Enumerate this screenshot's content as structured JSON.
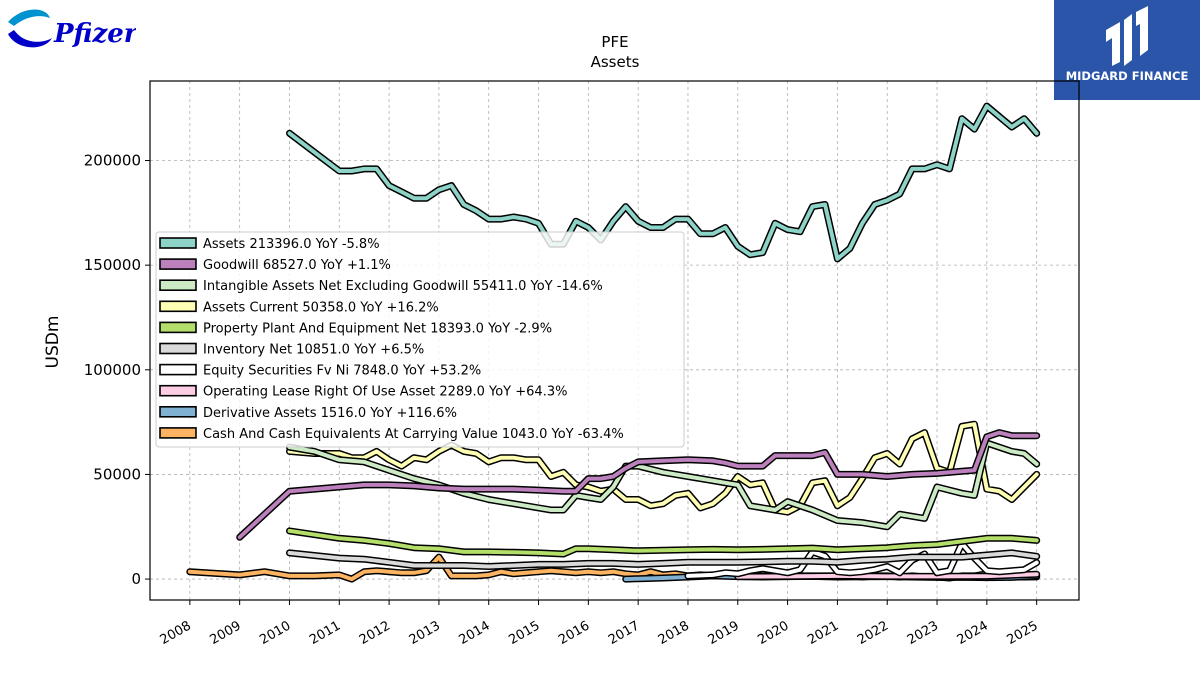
{
  "brand": {
    "company_logo_text": "Pfizer",
    "partner_logo_text": "MIDGARD FINANCE"
  },
  "chart_data": {
    "type": "line",
    "title": "PFE",
    "subtitle": "Assets",
    "ylabel": "USDm",
    "xlabel": "",
    "ylim": [
      -10000,
      238000
    ],
    "xlim": [
      2007.2,
      2025.85
    ],
    "yticks": [
      0,
      50000,
      100000,
      150000,
      200000
    ],
    "xticks": [
      2008,
      2009,
      2010,
      2011,
      2012,
      2013,
      2014,
      2015,
      2016,
      2017,
      2018,
      2019,
      2020,
      2021,
      2022,
      2023,
      2024,
      2025
    ],
    "grid": true,
    "legend_position": "center-left",
    "series": [
      {
        "name": "Assets",
        "legend": "Assets  213396.0 YoY -5.8%",
        "color": "#8dd3c7",
        "x": [
          2010.0,
          2010.5,
          2011.0,
          2011.25,
          2011.5,
          2011.75,
          2012.0,
          2012.25,
          2012.5,
          2012.75,
          2013.0,
          2013.25,
          2013.5,
          2013.75,
          2014.0,
          2014.25,
          2014.5,
          2014.75,
          2015.0,
          2015.25,
          2015.5,
          2015.75,
          2016.0,
          2016.25,
          2016.5,
          2016.75,
          2017.0,
          2017.25,
          2017.5,
          2017.75,
          2018.0,
          2018.25,
          2018.5,
          2018.75,
          2019.0,
          2019.25,
          2019.5,
          2019.75,
          2020.0,
          2020.25,
          2020.5,
          2020.75,
          2021.0,
          2021.25,
          2021.5,
          2021.75,
          2022.0,
          2022.25,
          2022.5,
          2022.75,
          2023.0,
          2023.25,
          2023.5,
          2023.75,
          2024.0,
          2024.25,
          2024.5,
          2024.75,
          2025.0
        ],
        "values": [
          213000,
          204000,
          195000,
          195000,
          196000,
          196000,
          188000,
          185000,
          182000,
          182000,
          186000,
          188000,
          179000,
          176000,
          172000,
          172000,
          173000,
          172000,
          170000,
          160000,
          160000,
          171000,
          168000,
          162000,
          171000,
          178000,
          171000,
          168000,
          168000,
          172000,
          172000,
          165000,
          165000,
          168000,
          159000,
          155000,
          156000,
          170000,
          167000,
          166000,
          178000,
          179000,
          153000,
          158000,
          170000,
          179000,
          181000,
          184000,
          196000,
          196000,
          198000,
          196000,
          220000,
          215000,
          226000,
          221000,
          216000,
          220000,
          213000
        ]
      },
      {
        "name": "Goodwill",
        "legend": "Goodwill  68527.0 YoY +1.1%",
        "color": "#bc80bd",
        "x": [
          2009.0,
          2010.0,
          2011.0,
          2011.5,
          2012.0,
          2012.5,
          2013.0,
          2013.5,
          2014.0,
          2014.5,
          2015.0,
          2015.5,
          2015.75,
          2016.0,
          2016.25,
          2016.5,
          2016.75,
          2017.0,
          2017.5,
          2018.0,
          2018.5,
          2018.75,
          2019.0,
          2019.25,
          2019.5,
          2019.75,
          2020.0,
          2020.5,
          2020.75,
          2021.0,
          2021.5,
          2022.0,
          2022.5,
          2023.0,
          2023.5,
          2023.75,
          2024.0,
          2024.25,
          2024.5,
          2025.0
        ],
        "values": [
          20000,
          42000,
          44000,
          45000,
          45000,
          44500,
          43500,
          43000,
          43000,
          43000,
          42500,
          42000,
          42000,
          48000,
          48000,
          49000,
          53000,
          56000,
          56500,
          57000,
          56500,
          55500,
          54000,
          54000,
          54000,
          59000,
          59000,
          59000,
          60500,
          50000,
          50000,
          49000,
          50000,
          50500,
          51500,
          52000,
          68000,
          70000,
          68500,
          68500
        ]
      },
      {
        "name": "Intangible Assets Net Excluding Goodwill",
        "legend": "Intangible Assets Net Excluding Goodwill  55411.0 YoY -14.6%",
        "color": "#ccebc5",
        "x": [
          2010.0,
          2010.5,
          2011.0,
          2011.5,
          2012.0,
          2012.5,
          2013.0,
          2013.5,
          2014.0,
          2014.5,
          2015.0,
          2015.25,
          2015.5,
          2015.75,
          2016.0,
          2016.25,
          2016.5,
          2016.75,
          2017.0,
          2017.5,
          2018.0,
          2018.5,
          2018.75,
          2019.0,
          2019.25,
          2019.5,
          2019.75,
          2020.0,
          2020.5,
          2021.0,
          2021.5,
          2021.75,
          2022.0,
          2022.25,
          2022.5,
          2022.75,
          2023.0,
          2023.5,
          2023.75,
          2024.0,
          2024.5,
          2024.75,
          2025.0
        ],
        "values": [
          63000,
          61000,
          57000,
          56000,
          52000,
          48000,
          45000,
          41000,
          38000,
          36000,
          34000,
          33000,
          33000,
          40000,
          39000,
          38000,
          44000,
          54000,
          54000,
          51000,
          49000,
          47000,
          46000,
          45000,
          35000,
          34000,
          33000,
          37000,
          33000,
          28000,
          27000,
          26000,
          25000,
          31000,
          30000,
          29000,
          44000,
          41000,
          40000,
          65000,
          61000,
          60000,
          55000
        ]
      },
      {
        "name": "Assets Current",
        "legend": "Assets Current  50358.0 YoY +16.2%",
        "color": "#ffffb3",
        "x": [
          2010.0,
          2010.5,
          2011.0,
          2011.25,
          2011.5,
          2011.75,
          2012.0,
          2012.25,
          2012.5,
          2012.75,
          2013.0,
          2013.25,
          2013.5,
          2013.75,
          2014.0,
          2014.25,
          2014.5,
          2014.75,
          2015.0,
          2015.25,
          2015.5,
          2015.75,
          2016.0,
          2016.25,
          2016.5,
          2016.75,
          2017.0,
          2017.25,
          2017.5,
          2017.75,
          2018.0,
          2018.25,
          2018.5,
          2018.75,
          2019.0,
          2019.25,
          2019.5,
          2019.75,
          2020.0,
          2020.25,
          2020.5,
          2020.75,
          2021.0,
          2021.25,
          2021.5,
          2021.75,
          2022.0,
          2022.25,
          2022.5,
          2022.75,
          2023.0,
          2023.25,
          2023.5,
          2023.75,
          2024.0,
          2024.25,
          2024.5,
          2024.75,
          2025.0
        ],
        "values": [
          61000,
          60000,
          60000,
          58000,
          58000,
          61000,
          57000,
          54000,
          58000,
          57000,
          61000,
          64000,
          61000,
          60000,
          56000,
          58000,
          58000,
          57000,
          57000,
          49000,
          51000,
          45000,
          44000,
          42000,
          43000,
          38000,
          38000,
          35000,
          36000,
          40000,
          41000,
          34000,
          36000,
          41000,
          49000,
          45000,
          46000,
          33000,
          32000,
          35000,
          46000,
          47000,
          35000,
          39000,
          48000,
          58000,
          60000,
          55000,
          67000,
          70000,
          53000,
          51000,
          73000,
          74000,
          43000,
          42000,
          38000,
          44000,
          50000
        ]
      },
      {
        "name": "Property Plant And Equipment Net",
        "legend": "Property Plant And Equipment Net  18393.0 YoY -2.9%",
        "color": "#b3de69",
        "x": [
          2010.0,
          2011.0,
          2011.5,
          2012.0,
          2012.5,
          2013.0,
          2013.5,
          2014.0,
          2014.5,
          2015.0,
          2015.5,
          2015.75,
          2016.0,
          2016.5,
          2017.0,
          2017.5,
          2018.0,
          2018.5,
          2019.0,
          2019.5,
          2020.0,
          2020.5,
          2021.0,
          2021.5,
          2022.0,
          2022.5,
          2023.0,
          2023.5,
          2024.0,
          2024.5,
          2025.0
        ],
        "values": [
          23000,
          19500,
          18500,
          17000,
          15000,
          14500,
          13000,
          13000,
          12800,
          12500,
          12000,
          14500,
          14500,
          14000,
          13500,
          13800,
          14000,
          14200,
          14000,
          14200,
          14500,
          14800,
          14000,
          14500,
          15000,
          16000,
          16500,
          18000,
          19500,
          19500,
          18500
        ]
      },
      {
        "name": "Inventory Net",
        "legend": "Inventory Net  10851.0 YoY +6.5%",
        "color": "#d9d9d9",
        "x": [
          2010.0,
          2011.0,
          2011.5,
          2012.0,
          2012.5,
          2013.0,
          2013.5,
          2014.0,
          2014.5,
          2015.0,
          2015.5,
          2016.0,
          2016.5,
          2017.0,
          2017.5,
          2018.0,
          2018.5,
          2019.0,
          2019.5,
          2020.0,
          2020.5,
          2021.0,
          2021.5,
          2022.0,
          2022.5,
          2023.0,
          2023.5,
          2024.0,
          2024.5,
          2025.0
        ],
        "values": [
          12500,
          10000,
          9500,
          8000,
          6500,
          6500,
          6500,
          6000,
          6500,
          7000,
          7000,
          7500,
          7500,
          7000,
          7500,
          8000,
          8000,
          8000,
          8200,
          8500,
          8500,
          8000,
          9000,
          9500,
          10500,
          10500,
          10500,
          11500,
          12500,
          10850
        ]
      },
      {
        "name": "Equity Securities Fv Ni",
        "legend": "Equity Securities Fv Ni  7848.0 YoY +53.2%",
        "color": "#ffffff",
        "x": [
          2018.0,
          2018.5,
          2018.75,
          2019.0,
          2019.25,
          2019.5,
          2019.75,
          2020.0,
          2020.25,
          2020.5,
          2020.75,
          2021.0,
          2021.25,
          2021.5,
          2021.75,
          2022.0,
          2022.25,
          2022.5,
          2022.75,
          2023.0,
          2023.25,
          2023.5,
          2023.75,
          2024.0,
          2024.25,
          2024.5,
          2024.75,
          2025.0
        ],
        "values": [
          1500,
          2000,
          3000,
          2500,
          4000,
          5000,
          4000,
          3000,
          4500,
          13000,
          11000,
          3500,
          3000,
          3500,
          4500,
          6000,
          3000,
          9000,
          12000,
          3000,
          4000,
          17000,
          10000,
          4000,
          3500,
          4000,
          4500,
          7848
        ]
      },
      {
        "name": "Operating Lease Right Of Use Asset",
        "legend": "Operating Lease Right Of Use Asset  2289.0 YoY +64.3%",
        "color": "#fccde5",
        "x": [
          2019.0,
          2020.0,
          2021.0,
          2022.0,
          2023.0,
          2024.0,
          2025.0
        ],
        "values": [
          1200,
          1300,
          1500,
          1300,
          1300,
          1400,
          2289
        ]
      },
      {
        "name": "Derivative Assets",
        "legend": "Derivative Assets  1516.0 YoY +116.6%",
        "color": "#80b1d3",
        "x": [
          2016.75,
          2017.0,
          2017.5,
          2018.0,
          2018.5,
          2019.0,
          2019.5,
          2020.0,
          2020.5,
          2021.0,
          2021.5,
          2022.0,
          2022.5,
          2023.0,
          2023.5,
          2024.0,
          2024.5,
          2025.0
        ],
        "values": [
          0,
          200,
          500,
          1000,
          1500,
          1200,
          1000,
          1200,
          1300,
          1000,
          1100,
          1200,
          1000,
          800,
          900,
          700,
          800,
          1516
        ]
      },
      {
        "name": "Cash And Cash Equivalents At Carrying Value",
        "legend": "Cash And Cash Equivalents At Carrying Value  1043.0 YoY -63.4%",
        "color": "#fdb462",
        "x": [
          2008.0,
          2009.0,
          2009.5,
          2010.0,
          2010.5,
          2011.0,
          2011.25,
          2011.5,
          2011.75,
          2012.0,
          2012.25,
          2012.5,
          2012.75,
          2013.0,
          2013.25,
          2013.5,
          2013.75,
          2014.0,
          2014.25,
          2014.5,
          2014.75,
          2015.0,
          2015.25,
          2015.5,
          2015.75,
          2016.0,
          2016.25,
          2016.5,
          2016.75,
          2017.0,
          2017.25,
          2017.5,
          2017.75,
          2018.0,
          2018.25,
          2018.5,
          2018.75,
          2019.0,
          2019.25,
          2019.5,
          2019.75,
          2020.0,
          2020.25,
          2020.5,
          2020.75,
          2021.0,
          2021.25,
          2021.5,
          2021.75,
          2022.0,
          2022.25,
          2022.5,
          2022.75,
          2023.0,
          2023.25,
          2023.5,
          2023.75,
          2024.0,
          2024.25,
          2024.5,
          2024.75,
          2025.0
        ],
        "values": [
          3500,
          2000,
          3500,
          1500,
          1500,
          2000,
          0,
          3500,
          4000,
          3500,
          3000,
          3000,
          4000,
          10500,
          1500,
          1500,
          1500,
          2000,
          3500,
          2500,
          3000,
          3500,
          4000,
          3500,
          3000,
          3500,
          3000,
          3500,
          2500,
          2000,
          3500,
          2000,
          2500,
          1500,
          2000,
          1500,
          2000,
          1500,
          1500,
          1500,
          1500,
          1500,
          1500,
          1500,
          1500,
          1500,
          1500,
          1000,
          1500,
          1500,
          1000,
          1500,
          1000,
          1000,
          500,
          1500,
          1500,
          2500,
          1000,
          1000,
          1000,
          1043
        ]
      }
    ]
  }
}
